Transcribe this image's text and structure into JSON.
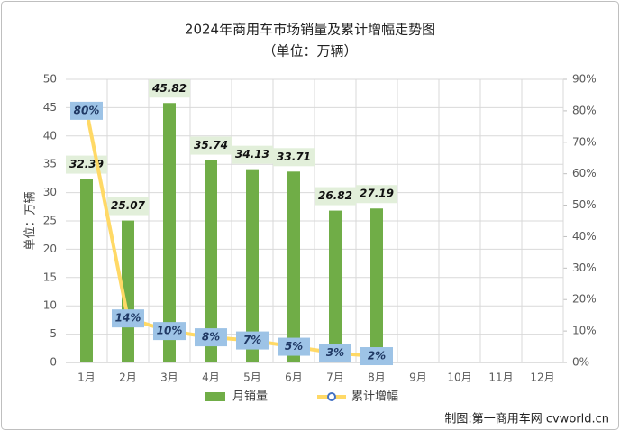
{
  "chart_data": {
    "type": "bar",
    "title": "2024年商用车市场销量及累计增幅走势图",
    "subtitle": "（单位：万辆）",
    "y_label": "单位：万辆",
    "source": "制图:第一商用车网 cvworld.cn",
    "categories": [
      "1月",
      "2月",
      "3月",
      "4月",
      "5月",
      "6月",
      "7月",
      "8月",
      "9月",
      "10月",
      "11月",
      "12月"
    ],
    "series": [
      {
        "name": "月销量",
        "type": "bar",
        "color": "#70ad47",
        "values": [
          32.39,
          25.07,
          45.82,
          35.74,
          34.13,
          33.71,
          26.82,
          27.19,
          null,
          null,
          null,
          null
        ]
      },
      {
        "name": "累计增幅",
        "type": "line",
        "axis": "y2",
        "color": "#ffd966",
        "values": [
          80,
          14,
          10,
          8,
          7,
          5,
          3,
          2,
          null,
          null,
          null,
          null
        ],
        "value_labels": [
          "80%",
          "14%",
          "10%",
          "8%",
          "7%",
          "5%",
          "3%",
          "2%",
          null,
          null,
          null,
          null
        ]
      }
    ],
    "ylim": [
      0,
      50
    ],
    "yticks": [
      0,
      5,
      10,
      15,
      20,
      25,
      30,
      35,
      40,
      45,
      50
    ],
    "y2lim": [
      0,
      90
    ],
    "y2ticks": [
      {
        "value": 0,
        "label": "0%"
      },
      {
        "value": 10,
        "label": "10%"
      },
      {
        "value": 20,
        "label": "20%"
      },
      {
        "value": 30,
        "label": "30%"
      },
      {
        "value": 40,
        "label": "40%"
      },
      {
        "value": 50,
        "label": "50%"
      },
      {
        "value": 60,
        "label": "60%"
      },
      {
        "value": 70,
        "label": "70%"
      },
      {
        "value": 80,
        "label": "80%"
      },
      {
        "value": 90,
        "label": "90%"
      }
    ],
    "grid": true,
    "legend": "bottom"
  }
}
